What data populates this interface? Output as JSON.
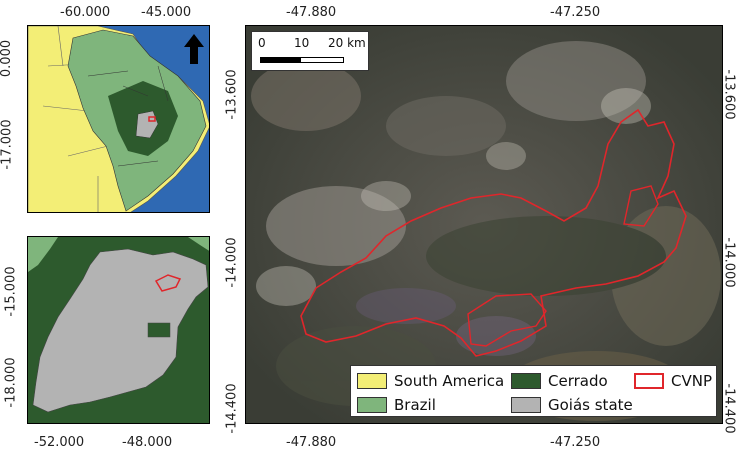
{
  "panels": {
    "south_america": {
      "x_ticks": [
        "-60.000",
        "-45.000"
      ],
      "y_ticks": [
        "0.000",
        "-17.000"
      ]
    },
    "goias": {
      "x_ticks": [
        "-52.000",
        "-48.000"
      ],
      "y_ticks": [
        "-15.000",
        "-18.000"
      ]
    },
    "main": {
      "x_ticks_top": [
        "-47.880",
        "-47.250"
      ],
      "x_ticks_bottom": [
        "-47.880",
        "-47.250"
      ],
      "y_ticks_left": [
        "-13.600",
        "-14.000",
        "-14.400"
      ],
      "y_ticks_right": [
        "-13.600",
        "-14.000",
        "-14.400"
      ],
      "scale": {
        "labels": [
          "0",
          "10",
          "20 km"
        ]
      }
    }
  },
  "legend": {
    "items": [
      {
        "label": "South America",
        "color": "#f3ee76"
      },
      {
        "label": "Cerrado",
        "color": "#2d5a2d"
      },
      {
        "label": "CVNP",
        "color": "#ffffff",
        "stroke": "#e0262b"
      },
      {
        "label": "Brazil",
        "color": "#7fb57c"
      },
      {
        "label": "Goiás state",
        "color": "#b3b3b3"
      }
    ]
  },
  "icons": {
    "north_arrow": "north-arrow-icon"
  },
  "colors": {
    "ocean": "#2f69b3",
    "cerrado": "#2d5a2d",
    "brazil": "#7fb57c",
    "goias": "#b3b3b3",
    "sa": "#f3ee76",
    "cvnp": "#e0262b"
  }
}
